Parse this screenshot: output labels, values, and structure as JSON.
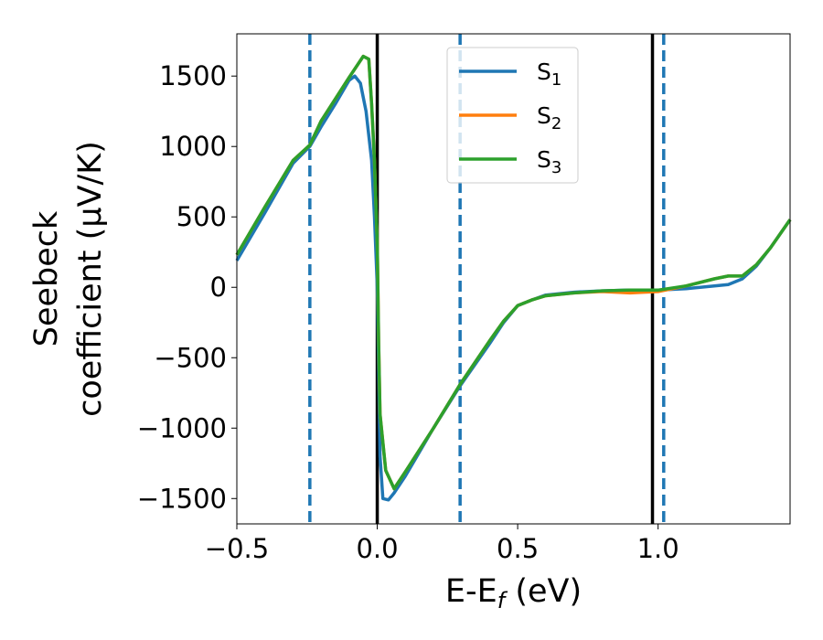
{
  "chart_data": {
    "type": "line",
    "xlabel": {
      "base": "E-E",
      "sub": "f",
      "rest": " (eV)"
    },
    "ylabel": {
      "line1": "Seebeck",
      "line2": "coefficient  (μV/K)"
    },
    "xlim": [
      -0.5,
      1.47
    ],
    "ylim": [
      -1680,
      1800
    ],
    "xticks": [
      -0.5,
      0.0,
      0.5,
      1.0
    ],
    "xtick_labels": [
      "−0.5",
      "0.0",
      "0.5",
      "1.0"
    ],
    "yticks": [
      -1500,
      -1000,
      -500,
      0,
      500,
      1000,
      1500
    ],
    "ytick_labels": [
      "−1500",
      "−1000",
      "−500",
      "0",
      "500",
      "1000",
      "1500"
    ],
    "grid": false,
    "legend_position": "top-center",
    "vlines": [
      {
        "x": -0.24,
        "style": "dashed",
        "color": "#1f77b4"
      },
      {
        "x": 0.0,
        "style": "solid",
        "color": "#000000"
      },
      {
        "x": 0.295,
        "style": "dashed",
        "color": "#1f77b4"
      },
      {
        "x": 0.98,
        "style": "solid",
        "color": "#000000"
      },
      {
        "x": 1.02,
        "style": "dashed",
        "color": "#1f77b4"
      }
    ],
    "series": [
      {
        "name": "S",
        "sub": "1",
        "color": "#1f77b4",
        "points": [
          [
            -0.5,
            190
          ],
          [
            -0.4,
            530
          ],
          [
            -0.3,
            880
          ],
          [
            -0.24,
            1000
          ],
          [
            -0.2,
            1140
          ],
          [
            -0.15,
            1300
          ],
          [
            -0.1,
            1470
          ],
          [
            -0.08,
            1500
          ],
          [
            -0.06,
            1450
          ],
          [
            -0.04,
            1250
          ],
          [
            -0.02,
            900
          ],
          [
            -0.01,
            500
          ],
          [
            0.0,
            0
          ],
          [
            0.005,
            -600
          ],
          [
            0.01,
            -1200
          ],
          [
            0.02,
            -1500
          ],
          [
            0.04,
            -1510
          ],
          [
            0.06,
            -1460
          ],
          [
            0.1,
            -1340
          ],
          [
            0.2,
            -1000
          ],
          [
            0.295,
            -700
          ],
          [
            0.4,
            -400
          ],
          [
            0.45,
            -250
          ],
          [
            0.5,
            -130
          ],
          [
            0.55,
            -90
          ],
          [
            0.6,
            -55
          ],
          [
            0.7,
            -35
          ],
          [
            0.8,
            -25
          ],
          [
            0.9,
            -20
          ],
          [
            1.0,
            -20
          ],
          [
            1.1,
            -10
          ],
          [
            1.2,
            10
          ],
          [
            1.25,
            20
          ],
          [
            1.3,
            60
          ],
          [
            1.35,
            150
          ],
          [
            1.4,
            280
          ],
          [
            1.47,
            480
          ]
        ]
      },
      {
        "name": "S",
        "sub": "2",
        "color": "#ff7f0e",
        "points": [
          [
            -0.5,
            230
          ],
          [
            -0.4,
            570
          ],
          [
            -0.3,
            900
          ],
          [
            -0.24,
            1010
          ],
          [
            -0.2,
            1180
          ],
          [
            -0.1,
            1490
          ],
          [
            -0.05,
            1640
          ],
          [
            -0.03,
            1620
          ],
          [
            -0.02,
            1300
          ],
          [
            -0.01,
            900
          ],
          [
            0.0,
            300
          ],
          [
            0.005,
            -400
          ],
          [
            0.01,
            -900
          ],
          [
            0.03,
            -1300
          ],
          [
            0.06,
            -1430
          ],
          [
            0.1,
            -1310
          ],
          [
            0.2,
            -1000
          ],
          [
            0.295,
            -690
          ],
          [
            0.4,
            -380
          ],
          [
            0.45,
            -240
          ],
          [
            0.5,
            -130
          ],
          [
            0.55,
            -90
          ],
          [
            0.6,
            -60
          ],
          [
            0.7,
            -40
          ],
          [
            0.8,
            -30
          ],
          [
            0.9,
            -40
          ],
          [
            1.0,
            -30
          ],
          [
            1.1,
            10
          ],
          [
            1.2,
            60
          ],
          [
            1.25,
            80
          ],
          [
            1.3,
            80
          ],
          [
            1.35,
            160
          ],
          [
            1.4,
            280
          ],
          [
            1.47,
            480
          ]
        ]
      },
      {
        "name": "S",
        "sub": "3",
        "color": "#2ca02c",
        "points": [
          [
            -0.5,
            230
          ],
          [
            -0.4,
            570
          ],
          [
            -0.3,
            900
          ],
          [
            -0.24,
            1010
          ],
          [
            -0.2,
            1180
          ],
          [
            -0.1,
            1490
          ],
          [
            -0.05,
            1640
          ],
          [
            -0.03,
            1620
          ],
          [
            -0.02,
            1300
          ],
          [
            -0.01,
            900
          ],
          [
            0.0,
            300
          ],
          [
            0.005,
            -400
          ],
          [
            0.01,
            -900
          ],
          [
            0.03,
            -1300
          ],
          [
            0.06,
            -1430
          ],
          [
            0.1,
            -1310
          ],
          [
            0.2,
            -1000
          ],
          [
            0.295,
            -690
          ],
          [
            0.4,
            -380
          ],
          [
            0.45,
            -240
          ],
          [
            0.5,
            -130
          ],
          [
            0.55,
            -90
          ],
          [
            0.6,
            -60
          ],
          [
            0.7,
            -40
          ],
          [
            0.8,
            -25
          ],
          [
            0.9,
            -20
          ],
          [
            1.0,
            -20
          ],
          [
            1.1,
            10
          ],
          [
            1.2,
            60
          ],
          [
            1.25,
            80
          ],
          [
            1.3,
            80
          ],
          [
            1.35,
            160
          ],
          [
            1.4,
            280
          ],
          [
            1.47,
            480
          ]
        ]
      }
    ]
  }
}
